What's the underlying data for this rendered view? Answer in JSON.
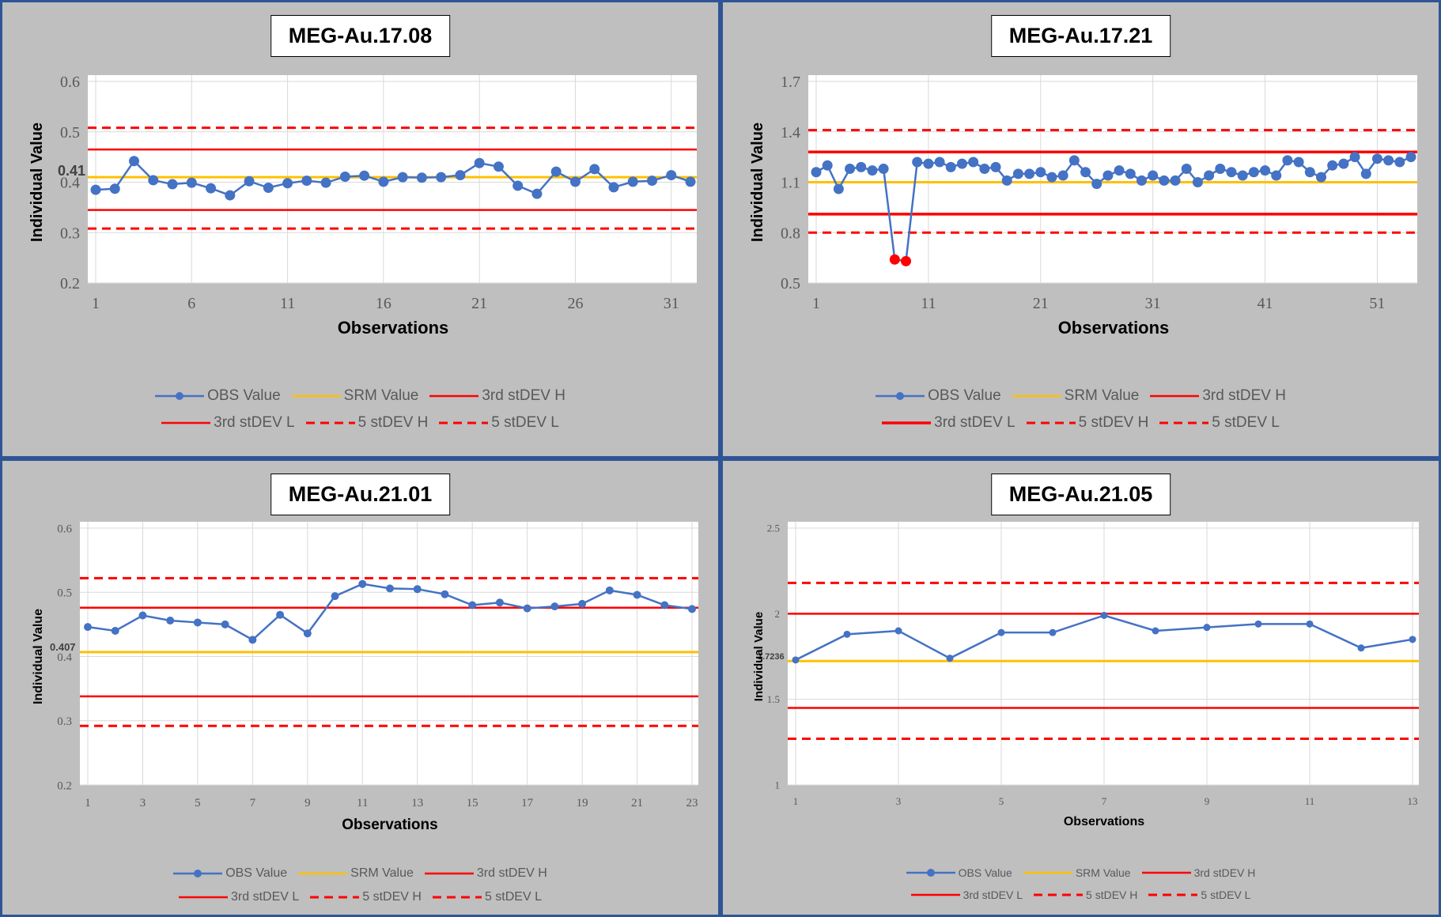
{
  "chart_data": [
    {
      "type": "line",
      "title": "MEG-Au.17.08",
      "xlabel": "Observations",
      "ylabel": "Individual Value",
      "ylim": [
        0.2,
        0.6
      ],
      "yticks": [
        "0.2",
        "0.3",
        "0.4",
        "0.5",
        "0.6"
      ],
      "xlim": [
        1,
        32
      ],
      "xticks": [
        1,
        6,
        11,
        16,
        21,
        26,
        31
      ],
      "srm_label": "0.41",
      "limits": {
        "srm": 0.41,
        "sd3_high": 0.465,
        "sd3_low": 0.345,
        "sd5_high": 0.508,
        "sd5_low": 0.308
      },
      "x": [
        1,
        2,
        3,
        4,
        5,
        6,
        7,
        8,
        9,
        10,
        11,
        12,
        13,
        14,
        15,
        16,
        17,
        18,
        19,
        20,
        21,
        22,
        23,
        24,
        25,
        26,
        27,
        28,
        29,
        30,
        31,
        32
      ],
      "obs": [
        0.385,
        0.387,
        0.442,
        0.404,
        0.396,
        0.399,
        0.388,
        0.374,
        0.402,
        0.389,
        0.398,
        0.403,
        0.399,
        0.411,
        0.413,
        0.401,
        0.41,
        0.409,
        0.41,
        0.414,
        0.438,
        0.431,
        0.393,
        0.377,
        0.421,
        0.401,
        0.426,
        0.39,
        0.401,
        0.403,
        0.414,
        0.401
      ],
      "outlier_indices": [],
      "legend": [
        "OBS Value",
        "SRM Value",
        "3rd stDEV H",
        "3rd stDEV L",
        "5 stDEV H",
        "5 stDEV L"
      ]
    },
    {
      "type": "line",
      "title": "MEG-Au.17.21",
      "xlabel": "Observations",
      "ylabel": "Individual Value",
      "ylim": [
        0.5,
        1.7
      ],
      "yticks": [
        "0.5",
        "0.8",
        "1.1",
        "1.4",
        "1.7"
      ],
      "xlim": [
        1,
        54
      ],
      "xticks": [
        1,
        11,
        21,
        31,
        41,
        51
      ],
      "srm_label": "",
      "limits": {
        "srm": 1.1,
        "sd3_high": 1.28,
        "sd3_low": 0.91,
        "sd5_high": 1.41,
        "sd5_low": 0.8
      },
      "x": [
        1,
        2,
        3,
        4,
        5,
        6,
        7,
        8,
        9,
        10,
        11,
        12,
        13,
        14,
        15,
        16,
        17,
        18,
        19,
        20,
        21,
        22,
        23,
        24,
        25,
        26,
        27,
        28,
        29,
        30,
        31,
        32,
        33,
        34,
        35,
        36,
        37,
        38,
        39,
        40,
        41,
        42,
        43,
        44,
        45,
        46,
        47,
        48,
        49,
        50,
        51,
        52,
        53,
        54
      ],
      "obs": [
        1.16,
        1.2,
        1.06,
        1.18,
        1.19,
        1.17,
        1.18,
        0.64,
        0.63,
        1.22,
        1.21,
        1.22,
        1.19,
        1.21,
        1.22,
        1.18,
        1.19,
        1.11,
        1.15,
        1.15,
        1.16,
        1.13,
        1.14,
        1.23,
        1.16,
        1.09,
        1.14,
        1.17,
        1.15,
        1.11,
        1.14,
        1.11,
        1.11,
        1.18,
        1.1,
        1.14,
        1.18,
        1.16,
        1.14,
        1.16,
        1.17,
        1.14,
        1.23,
        1.22,
        1.16,
        1.13,
        1.2,
        1.21,
        1.25,
        1.15,
        1.24,
        1.23,
        1.22,
        1.25
      ],
      "outlier_indices": [
        7,
        8
      ],
      "legend": [
        "OBS Value",
        "SRM Value",
        "3rd stDEV H",
        "3rd stDEV L",
        "5 stDEV H",
        "5 stDEV L"
      ]
    },
    {
      "type": "line",
      "title": "MEG-Au.21.01",
      "xlabel": "Observations",
      "ylabel": "Individual Value",
      "ylim": [
        0.2,
        0.6
      ],
      "yticks": [
        "0.2",
        "0.3",
        "0.4",
        "0.5",
        "0.6"
      ],
      "xlim": [
        1,
        23
      ],
      "xticks": [
        1,
        3,
        5,
        7,
        9,
        11,
        13,
        15,
        17,
        19,
        21,
        23
      ],
      "srm_label": "0.407",
      "limits": {
        "srm": 0.407,
        "sd3_high": 0.476,
        "sd3_low": 0.338,
        "sd5_high": 0.522,
        "sd5_low": 0.292
      },
      "x": [
        1,
        2,
        3,
        4,
        5,
        6,
        7,
        8,
        9,
        10,
        11,
        12,
        13,
        14,
        15,
        16,
        17,
        18,
        19,
        20,
        21,
        22,
        23
      ],
      "obs": [
        0.446,
        0.44,
        0.464,
        0.456,
        0.453,
        0.45,
        0.426,
        0.465,
        0.436,
        0.494,
        0.513,
        0.506,
        0.505,
        0.497,
        0.48,
        0.484,
        0.475,
        0.478,
        0.482,
        0.503,
        0.496,
        0.48,
        0.474
      ],
      "outlier_indices": [],
      "legend": [
        "OBS Value",
        "SRM Value",
        "3rd stDEV H",
        "3rd stDEV L",
        "5 stDEV H",
        "5 stDEV L"
      ]
    },
    {
      "type": "line",
      "title": "MEG-Au.21.05",
      "xlabel": "Observations",
      "ylabel": "Individual Value",
      "ylim": [
        1,
        2.5
      ],
      "yticks": [
        "1",
        "1.5",
        "2",
        "2.5"
      ],
      "xlim": [
        1,
        13
      ],
      "xticks": [
        1,
        3,
        5,
        7,
        9,
        11,
        13
      ],
      "srm_label": "1.7236",
      "limits": {
        "srm": 1.7236,
        "sd3_high": 2.0,
        "sd3_low": 1.45,
        "sd5_high": 2.18,
        "sd5_low": 1.27
      },
      "x": [
        1,
        2,
        3,
        4,
        5,
        6,
        7,
        8,
        9,
        10,
        11,
        12,
        13
      ],
      "obs": [
        1.73,
        1.88,
        1.9,
        1.74,
        1.89,
        1.89,
        1.99,
        1.9,
        1.92,
        1.94,
        1.94,
        1.8,
        1.85
      ],
      "outlier_indices": [],
      "legend": [
        "OBS Value",
        "SRM Value",
        "3rd stDEV H",
        "3rd stDEV L",
        "5 stDEV H",
        "5 stDEV L"
      ]
    }
  ],
  "colors": {
    "obs": "#4472c4",
    "outlier": "#ff0000",
    "srm": "#ffc000",
    "limit": "#ff0000",
    "panel_bg": "#bfbfbf",
    "panel_border": "#2f5597",
    "gridline": "#d9d9d9",
    "tick_text": "#595959"
  }
}
